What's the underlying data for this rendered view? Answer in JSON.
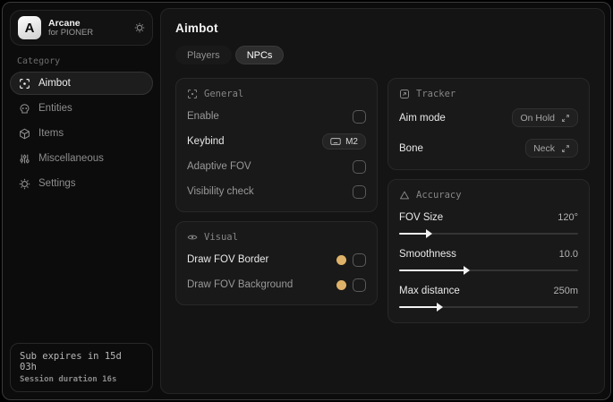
{
  "app": {
    "logo_letter": "A",
    "name": "Arcane",
    "subtitle": "for PIONER"
  },
  "colors": {
    "accent_gold": "#dfb269",
    "panel_bg": "#191919",
    "active_item_bg": "#1d1d1d",
    "slider_fill": "#f2f2f2"
  },
  "sidebar": {
    "category_label": "Category",
    "items": [
      {
        "label": "Aimbot",
        "icon": "crosshair-scan-icon",
        "active": true
      },
      {
        "label": "Entities",
        "icon": "skull-icon",
        "active": false
      },
      {
        "label": "Items",
        "icon": "cube-icon",
        "active": false
      },
      {
        "label": "Miscellaneous",
        "icon": "sliders-icon",
        "active": false
      },
      {
        "label": "Settings",
        "icon": "gear-icon",
        "active": false
      }
    ],
    "footer": {
      "line1": "Sub expires in 15d 03h",
      "line2": "Session duration 16s"
    }
  },
  "main": {
    "title": "Aimbot",
    "tabs": [
      {
        "label": "Players",
        "active": false
      },
      {
        "label": "NPCs",
        "active": true
      }
    ],
    "panels": {
      "general": {
        "title": "General",
        "icon": "crosshair-scan-icon",
        "rows": [
          {
            "label": "Enable",
            "control": "checkbox",
            "checked": false
          },
          {
            "label": "Keybind",
            "control": "keybind",
            "value": "M2"
          },
          {
            "label": "Adaptive FOV",
            "control": "checkbox",
            "checked": false
          },
          {
            "label": "Visibility check",
            "control": "checkbox",
            "checked": false
          }
        ]
      },
      "visual": {
        "title": "Visual",
        "icon": "eye-icon",
        "rows": [
          {
            "label": "Draw FOV Border",
            "control": "color+checkbox",
            "color": "#dfb269",
            "checked": false
          },
          {
            "label": "Draw FOV Background",
            "control": "color+checkbox",
            "color": "#dfb269",
            "checked": false
          }
        ]
      },
      "tracker": {
        "title": "Tracker",
        "icon": "frame-arrow-icon",
        "rows": [
          {
            "label": "Aim mode",
            "control": "select",
            "value": "On Hold"
          },
          {
            "label": "Bone",
            "control": "select",
            "value": "Neck"
          }
        ]
      },
      "accuracy": {
        "title": "Accuracy",
        "icon": "triangle-icon",
        "rows": [
          {
            "label": "FOV Size",
            "value": "120°",
            "percent": 16
          },
          {
            "label": "Smoothness",
            "value": "10.0",
            "percent": 37
          },
          {
            "label": "Max distance",
            "value": "250m",
            "percent": 22
          }
        ]
      }
    }
  }
}
